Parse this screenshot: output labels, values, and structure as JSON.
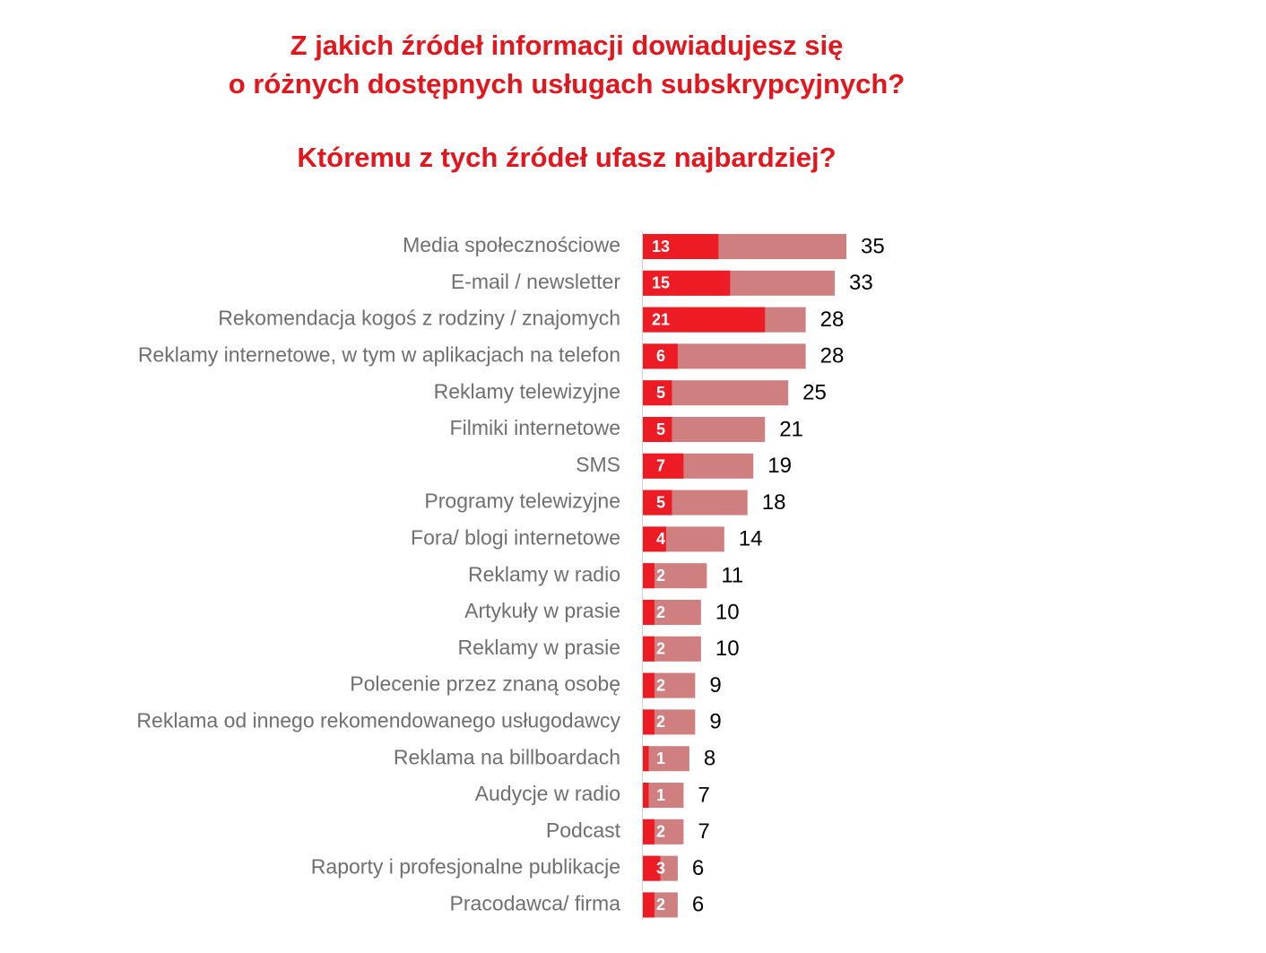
{
  "chart_data": {
    "type": "bar",
    "orientation": "horizontal",
    "title": [
      "Z jakich źródeł informacji dowiadujesz się",
      "o różnych dostępnych usługach subskrypcyjnych?"
    ],
    "subtitle": "Któremu z tych źródeł ufasz najbardziej?",
    "categories": [
      "Media społecznościowe",
      "E-mail / newsletter",
      "Rekomendacja kogoś z rodziny / znajomych",
      "Reklamy internetowe, w tym w aplikacjach na telefon",
      "Reklamy telewizyjne",
      "Filmiki internetowe",
      "SMS",
      "Programy telewizyjne",
      "Fora/ blogi internetowe",
      "Reklamy w radio",
      "Artykuły w prasie",
      "Reklamy w prasie",
      "Polecenie przez znaną osobę",
      "Reklama od innego rekomendowanego usługodawcy",
      "Reklama na billboardach",
      "Audycje w radio",
      "Podcast",
      "Raporty i profesjonalne publikacje",
      "Pracodawca/ firma"
    ],
    "series": [
      {
        "color": "#cf7f80",
        "values": [
          35,
          33,
          28,
          28,
          25,
          21,
          19,
          18,
          14,
          11,
          10,
          10,
          9,
          9,
          8,
          7,
          7,
          6,
          6
        ]
      },
      {
        "color": "#ed1c24",
        "values": [
          13,
          15,
          21,
          6,
          5,
          5,
          7,
          5,
          4,
          2,
          2,
          2,
          2,
          2,
          1,
          1,
          2,
          3,
          2
        ]
      }
    ]
  }
}
